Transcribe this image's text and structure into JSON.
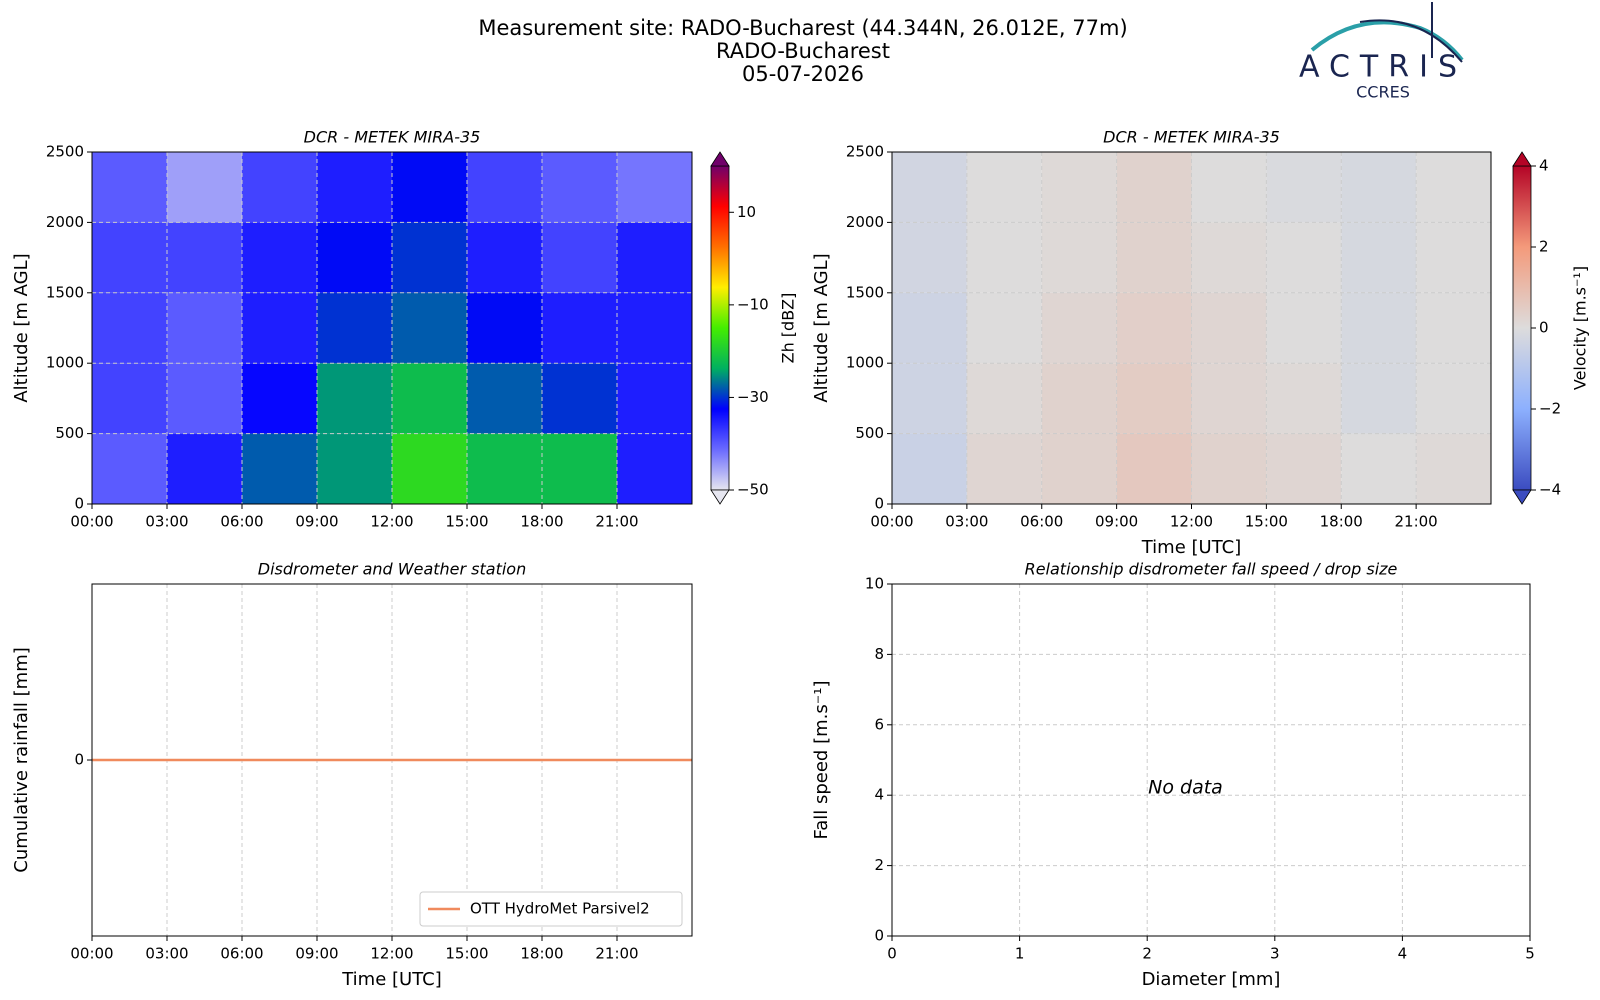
{
  "header": {
    "title": [
      "Measurement site: RADO-Bucharest (44.344N, 26.012E, 77m)",
      "RADO-Bucharest",
      "05-07-2026"
    ],
    "logo": {
      "name": "ACTRIS",
      "subtitle": "CCRES"
    }
  },
  "chart_data": [
    {
      "type": "heatmap",
      "title": "DCR - METEK MIRA-35",
      "ylabel": "Altitude [m AGL]",
      "xlim": [
        0,
        24
      ],
      "ylim": [
        0,
        2500
      ],
      "xticks": [
        {
          "value": 0,
          "label": "00:00"
        },
        {
          "value": 3,
          "label": "03:00"
        },
        {
          "value": 6,
          "label": "06:00"
        },
        {
          "value": 9,
          "label": "09:00"
        },
        {
          "value": 12,
          "label": "12:00"
        },
        {
          "value": 15,
          "label": "15:00"
        },
        {
          "value": 18,
          "label": "18:00"
        },
        {
          "value": 21,
          "label": "21:00"
        }
      ],
      "yticks": [
        0,
        500,
        1000,
        1500,
        2000,
        2500
      ],
      "grid": true,
      "x_edges": [
        0,
        3,
        6,
        9,
        12,
        15,
        18,
        21,
        24
      ],
      "y_edges": [
        0,
        500,
        1000,
        1500,
        2000,
        2500
      ],
      "z": [
        [
          -40,
          -35,
          -28,
          -25,
          -18,
          -22,
          -22,
          -35
        ],
        [
          -38,
          -40,
          -33,
          -25,
          -22,
          -28,
          -30,
          -35
        ],
        [
          -38,
          -40,
          -35,
          -30,
          -28,
          -32,
          -35,
          -35
        ],
        [
          -38,
          -38,
          -35,
          -32,
          -30,
          -35,
          -38,
          -35
        ],
        [
          -40,
          -45,
          -38,
          -35,
          -32,
          -38,
          -40,
          -42
        ]
      ],
      "colorbar_label": "Zh [dBZ]",
      "clim": [
        -50,
        20
      ],
      "colorbar_ticks": [
        {
          "value": -50,
          "label": "−50"
        },
        {
          "value": -30,
          "label": "−30"
        },
        {
          "value": -10,
          "label": "−10"
        },
        10
      ],
      "colormap": [
        "#e6e6f0",
        "#6a6aff",
        "#0000ff",
        "#00b060",
        "#44ee00",
        "#ffee00",
        "#ff7000",
        "#ff0000",
        "#70006a"
      ]
    },
    {
      "type": "heatmap",
      "title": "DCR - METEK MIRA-35",
      "ylabel": "Altitude [m AGL]",
      "xlabel": "Time [UTC]",
      "xlim": [
        0,
        24
      ],
      "ylim": [
        0,
        2500
      ],
      "xticks": [
        {
          "value": 0,
          "label": "00:00"
        },
        {
          "value": 3,
          "label": "03:00"
        },
        {
          "value": 6,
          "label": "06:00"
        },
        {
          "value": 9,
          "label": "09:00"
        },
        {
          "value": 12,
          "label": "12:00"
        },
        {
          "value": 15,
          "label": "15:00"
        },
        {
          "value": 18,
          "label": "18:00"
        },
        {
          "value": 21,
          "label": "21:00"
        }
      ],
      "yticks": [
        0,
        500,
        1000,
        1500,
        2000,
        2500
      ],
      "grid": true,
      "x_edges": [
        0,
        3,
        6,
        9,
        12,
        15,
        18,
        21,
        24
      ],
      "y_edges": [
        0,
        500,
        1000,
        1500,
        2000,
        2500
      ],
      "z": [
        [
          -0.5,
          0.2,
          0.3,
          0.6,
          0.3,
          0.2,
          0.0,
          0.1
        ],
        [
          -0.4,
          0.1,
          0.3,
          0.5,
          0.2,
          0.1,
          -0.2,
          0.0
        ],
        [
          -0.4,
          0.0,
          0.2,
          0.4,
          0.2,
          0.0,
          -0.2,
          0.0
        ],
        [
          -0.3,
          0.0,
          0.1,
          0.3,
          0.1,
          0.0,
          -0.2,
          0.0
        ],
        [
          -0.3,
          0.0,
          0.1,
          0.3,
          0.0,
          -0.1,
          -0.2,
          0.0
        ]
      ],
      "colorbar_label": "Velocity [m.s⁻¹]",
      "clim": [
        -4,
        4
      ],
      "colorbar_ticks": [
        {
          "value": -4,
          "label": "−4"
        },
        {
          "value": -2,
          "label": "−2"
        },
        0,
        2,
        4
      ],
      "colormap": [
        "#3b4cc0",
        "#8db0fe",
        "#dddcdc",
        "#f49a7b",
        "#b40426"
      ]
    },
    {
      "type": "line",
      "title": "Disdrometer and Weather station",
      "ylabel": "Cumulative rainfall [mm]",
      "xlabel": "Time [UTC]",
      "xlim": [
        0,
        24
      ],
      "ylim": [
        -0.05,
        0.05
      ],
      "xticks": [
        {
          "value": 0,
          "label": "00:00"
        },
        {
          "value": 3,
          "label": "03:00"
        },
        {
          "value": 6,
          "label": "06:00"
        },
        {
          "value": 9,
          "label": "09:00"
        },
        {
          "value": 12,
          "label": "12:00"
        },
        {
          "value": 15,
          "label": "15:00"
        },
        {
          "value": 18,
          "label": "18:00"
        },
        {
          "value": 21,
          "label": "21:00"
        }
      ],
      "yticks": [
        0
      ],
      "grid": true,
      "legend": "lower right",
      "series": [
        {
          "name": "OTT HydroMet Parsivel2",
          "color": "#f08a5d",
          "x": [
            0,
            24
          ],
          "values": [
            0,
            0
          ]
        }
      ]
    },
    {
      "type": "scatter",
      "title": "Relationship disdrometer fall speed / drop size",
      "ylabel": "Fall speed [m.s⁻¹]",
      "xlabel": "Diameter [mm]",
      "xlim": [
        0,
        5
      ],
      "ylim": [
        0,
        10
      ],
      "xticks": [
        0,
        1,
        2,
        3,
        4,
        5
      ],
      "yticks": [
        0,
        2,
        4,
        6,
        8,
        10
      ],
      "grid": true,
      "annotation": "No data"
    }
  ]
}
